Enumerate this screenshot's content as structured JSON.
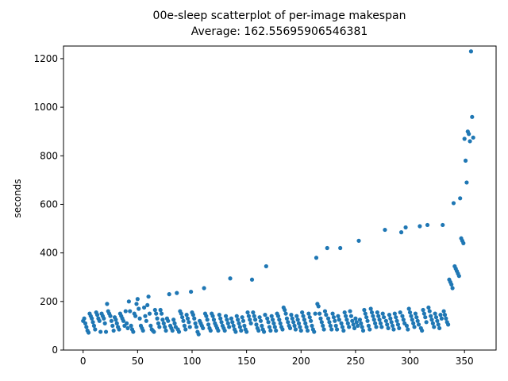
{
  "chart_data": {
    "type": "scatter",
    "title": "00e-sleep scatterplot of per-image makespan",
    "subtitle": "Average: 162.55695906546381",
    "y_label": "seconds",
    "color": "#1f77b4",
    "xlim": [
      -18,
      379
    ],
    "ylim": [
      0,
      1252
    ],
    "xticks": [
      0,
      50,
      100,
      150,
      200,
      250,
      300,
      350
    ],
    "yticks": [
      0,
      200,
      400,
      600,
      800,
      1000,
      1200
    ],
    "x": [
      0,
      1,
      2,
      3,
      4,
      5,
      6,
      7,
      8,
      9,
      10,
      11,
      12,
      13,
      14,
      15,
      16,
      17,
      18,
      19,
      20,
      21,
      22,
      23,
      24,
      25,
      26,
      27,
      28,
      29,
      30,
      31,
      32,
      33,
      34,
      35,
      36,
      37,
      38,
      39,
      40,
      41,
      42,
      43,
      44,
      45,
      46,
      47,
      48,
      49,
      50,
      51,
      52,
      53,
      54,
      55,
      56,
      57,
      58,
      59,
      60,
      61,
      62,
      63,
      64,
      65,
      66,
      67,
      68,
      69,
      70,
      71,
      72,
      73,
      74,
      75,
      76,
      77,
      78,
      79,
      80,
      81,
      82,
      83,
      84,
      85,
      86,
      87,
      88,
      89,
      90,
      91,
      92,
      93,
      94,
      95,
      96,
      97,
      98,
      99,
      100,
      101,
      102,
      103,
      104,
      105,
      106,
      107,
      108,
      109,
      110,
      111,
      112,
      113,
      114,
      115,
      116,
      117,
      118,
      119,
      120,
      121,
      122,
      123,
      124,
      125,
      126,
      127,
      128,
      129,
      130,
      131,
      132,
      133,
      134,
      135,
      136,
      137,
      138,
      139,
      140,
      141,
      142,
      143,
      144,
      145,
      146,
      147,
      148,
      149,
      150,
      151,
      152,
      153,
      154,
      155,
      156,
      157,
      158,
      159,
      160,
      161,
      162,
      163,
      164,
      165,
      166,
      167,
      168,
      169,
      170,
      171,
      172,
      173,
      174,
      175,
      176,
      177,
      178,
      179,
      180,
      181,
      182,
      183,
      184,
      185,
      186,
      187,
      188,
      189,
      190,
      191,
      192,
      193,
      194,
      195,
      196,
      197,
      198,
      199,
      200,
      201,
      202,
      203,
      204,
      205,
      206,
      207,
      208,
      209,
      210,
      211,
      212,
      213,
      214,
      215,
      216,
      217,
      218,
      219,
      220,
      221,
      222,
      223,
      224,
      225,
      226,
      227,
      228,
      229,
      230,
      231,
      232,
      233,
      234,
      235,
      236,
      237,
      238,
      239,
      240,
      241,
      242,
      243,
      244,
      245,
      246,
      247,
      248,
      249,
      250,
      251,
      252,
      253,
      254,
      255,
      256,
      257,
      258,
      259,
      260,
      261,
      262,
      263,
      264,
      265,
      266,
      267,
      268,
      269,
      270,
      271,
      272,
      273,
      274,
      275,
      276,
      277,
      278,
      279,
      280,
      281,
      282,
      283,
      284,
      285,
      286,
      287,
      288,
      289,
      290,
      291,
      292,
      293,
      294,
      295,
      296,
      297,
      298,
      299,
      300,
      301,
      302,
      303,
      304,
      305,
      306,
      307,
      308,
      309,
      310,
      311,
      312,
      313,
      314,
      315,
      316,
      317,
      318,
      319,
      320,
      321,
      322,
      323,
      324,
      325,
      326,
      327,
      328,
      329,
      330,
      331,
      332,
      333,
      334,
      335,
      336,
      337,
      338,
      339,
      340,
      341,
      342,
      343,
      344,
      345,
      346,
      347,
      348,
      349,
      350,
      351,
      352,
      353,
      354,
      355,
      356,
      357,
      358
    ],
    "values": [
      120,
      130,
      110,
      95,
      80,
      72,
      150,
      140,
      130,
      115,
      100,
      85,
      155,
      145,
      130,
      120,
      75,
      150,
      140,
      130,
      110,
      75,
      190,
      160,
      150,
      140,
      120,
      100,
      80,
      135,
      125,
      110,
      95,
      85,
      150,
      140,
      130,
      120,
      100,
      160,
      110,
      90,
      200,
      160,
      100,
      85,
      75,
      150,
      140,
      190,
      210,
      170,
      130,
      100,
      90,
      80,
      175,
      140,
      120,
      185,
      220,
      150,
      100,
      85,
      80,
      75,
      165,
      150,
      130,
      110,
      95,
      165,
      150,
      125,
      110,
      95,
      80,
      130,
      120,
      230,
      100,
      90,
      80,
      125,
      110,
      95,
      235,
      85,
      75,
      160,
      150,
      135,
      120,
      100,
      85,
      145,
      130,
      115,
      95,
      240,
      155,
      145,
      130,
      110,
      95,
      75,
      65,
      120,
      110,
      100,
      90,
      255,
      150,
      140,
      125,
      105,
      90,
      80,
      150,
      140,
      125,
      110,
      100,
      90,
      80,
      145,
      130,
      115,
      100,
      90,
      80,
      140,
      125,
      110,
      95,
      295,
      130,
      115,
      100,
      85,
      75,
      140,
      125,
      110,
      95,
      80,
      135,
      120,
      100,
      85,
      75,
      155,
      140,
      125,
      110,
      290,
      155,
      140,
      125,
      105,
      90,
      80,
      135,
      120,
      100,
      85,
      75,
      145,
      345,
      130,
      115,
      95,
      80,
      140,
      125,
      110,
      95,
      80,
      150,
      140,
      125,
      110,
      95,
      85,
      175,
      165,
      150,
      130,
      115,
      100,
      90,
      145,
      130,
      115,
      100,
      85,
      140,
      125,
      110,
      95,
      80,
      155,
      140,
      125,
      110,
      95,
      80,
      150,
      135,
      120,
      100,
      85,
      75,
      150,
      380,
      190,
      180,
      150,
      130,
      115,
      100,
      85,
      160,
      145,
      420,
      130,
      115,
      100,
      85,
      150,
      135,
      120,
      100,
      85,
      140,
      125,
      420,
      110,
      95,
      80,
      155,
      140,
      125,
      110,
      95,
      160,
      140,
      120,
      105,
      90,
      130,
      115,
      100,
      450,
      125,
      110,
      95,
      80,
      165,
      150,
      135,
      120,
      100,
      85,
      170,
      155,
      140,
      125,
      110,
      95,
      155,
      140,
      125,
      110,
      95,
      150,
      135,
      495,
      120,
      105,
      90,
      145,
      130,
      115,
      100,
      85,
      150,
      135,
      120,
      105,
      90,
      155,
      485,
      140,
      125,
      110,
      505,
      100,
      85,
      170,
      155,
      140,
      125,
      110,
      95,
      150,
      135,
      120,
      105,
      510,
      90,
      80,
      165,
      150,
      135,
      115,
      515,
      175,
      160,
      140,
      125,
      110,
      95,
      150,
      135,
      120,
      105,
      90,
      145,
      130,
      515,
      160,
      145,
      130,
      115,
      105,
      290,
      280,
      270,
      255,
      605,
      345,
      335,
      325,
      315,
      305,
      625,
      460,
      450,
      440,
      870,
      780,
      690,
      900,
      890,
      860,
      1230,
      960,
      875
    ]
  }
}
